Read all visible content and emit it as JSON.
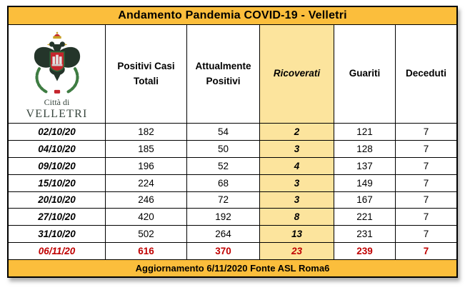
{
  "title": "Andamento Pandemia COVID-19 - Velletri",
  "logo": {
    "name": "velletri-city-crest",
    "line1": "Città di",
    "line2": "VELLETRI"
  },
  "table": {
    "columns": [
      "Positivi Casi Totali",
      "Attualmente Positivi",
      "Ricoverati",
      "Guariti",
      "Deceduti"
    ],
    "rows": [
      {
        "date": "02/10/20",
        "positivi_totali": "182",
        "attualmente_positivi": "54",
        "ricoverati": "2",
        "guariti": "121",
        "deceduti": "7",
        "highlight": false
      },
      {
        "date": "04/10/20",
        "positivi_totali": "185",
        "attualmente_positivi": "50",
        "ricoverati": "3",
        "guariti": "128",
        "deceduti": "7",
        "highlight": false
      },
      {
        "date": "09/10/20",
        "positivi_totali": "196",
        "attualmente_positivi": "52",
        "ricoverati": "4",
        "guariti": "137",
        "deceduti": "7",
        "highlight": false
      },
      {
        "date": "15/10/20",
        "positivi_totali": "224",
        "attualmente_positivi": "68",
        "ricoverati": "3",
        "guariti": "149",
        "deceduti": "7",
        "highlight": false
      },
      {
        "date": "20/10/20",
        "positivi_totali": "246",
        "attualmente_positivi": "72",
        "ricoverati": "3",
        "guariti": "167",
        "deceduti": "7",
        "highlight": false
      },
      {
        "date": "27/10/20",
        "positivi_totali": "420",
        "attualmente_positivi": "192",
        "ricoverati": "8",
        "guariti": "221",
        "deceduti": "7",
        "highlight": false
      },
      {
        "date": "31/10/20",
        "positivi_totali": "502",
        "attualmente_positivi": "264",
        "ricoverati": "13",
        "guariti": "231",
        "deceduti": "7",
        "highlight": false
      },
      {
        "date": "06/11/20",
        "positivi_totali": "616",
        "attualmente_positivi": "370",
        "ricoverati": "23",
        "guariti": "239",
        "deceduti": "7",
        "highlight": true
      }
    ]
  },
  "footer": "Aggiornamento 6/11/2020 Fonte ASL Roma6",
  "colors": {
    "header_bar": "#FBBE3C",
    "ricoverati_bg": "#FCE49D",
    "highlight_text": "#C00000"
  }
}
